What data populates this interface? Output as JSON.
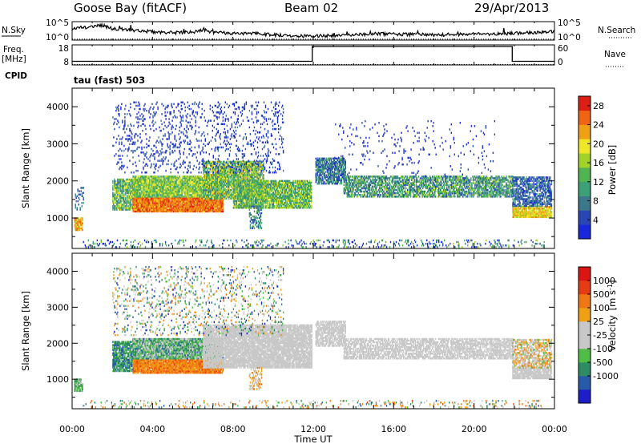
{
  "header": {
    "station": "Goose Bay (fitACF)",
    "beam": "Beam 02",
    "date": "29/Apr/2013"
  },
  "colors": {
    "frame": "#000000",
    "background": "#ffffff",
    "ground_scatter": "#c8c8c8"
  },
  "chart_data": [
    {
      "type": "line",
      "panel": "noise",
      "left_label": "N.Sky",
      "right_label": "N.Search",
      "left_ticks": [
        "10^5",
        "10^0"
      ],
      "right_ticks": [
        "10^5",
        "10^0"
      ],
      "x_range_hours": [
        0,
        24
      ],
      "series": [
        {
          "name": "N.Sky",
          "style": "solid",
          "x": [
            0,
            0.3,
            0.6,
            1,
            1.5,
            2,
            3,
            4,
            5,
            6,
            6.5,
            7,
            8,
            9,
            10,
            11,
            12,
            13,
            14,
            15,
            16,
            17,
            18,
            19,
            20,
            21,
            22,
            23,
            24
          ],
          "y_frac": [
            0.55,
            0.72,
            0.68,
            0.72,
            0.8,
            0.62,
            0.55,
            0.45,
            0.4,
            0.42,
            0.58,
            0.4,
            0.38,
            0.36,
            0.28,
            0.25,
            0.22,
            0.24,
            0.3,
            0.34,
            0.33,
            0.3,
            0.28,
            0.3,
            0.32,
            0.34,
            0.36,
            0.4,
            0.45
          ]
        },
        {
          "name": "N.Search",
          "style": "dotted",
          "x": [
            0,
            24
          ],
          "y_frac": [
            0.05,
            0.05
          ]
        }
      ]
    },
    {
      "type": "line",
      "panel": "frequency",
      "left_label": "Freq.",
      "left_unit": "[MHz]",
      "right_label": "Nave",
      "left_ticks": [
        "18",
        "8"
      ],
      "right_ticks": [
        "60",
        "0"
      ],
      "x_range_hours": [
        0,
        24
      ],
      "series": [
        {
          "name": "Freq.",
          "style": "solid",
          "x": [
            0,
            11.95,
            11.95,
            21.9,
            21.9,
            24
          ],
          "y": [
            9.8,
            9.8,
            17.2,
            17.2,
            9.8,
            9.8
          ],
          "ylim": [
            8,
            18
          ]
        },
        {
          "name": "Nave",
          "style": "dotted",
          "x": [
            0,
            24
          ],
          "y": [
            1.5,
            1.5
          ],
          "ylim": [
            0,
            60
          ]
        }
      ]
    },
    {
      "type": "heatmap",
      "panel": "power",
      "cpid_label": "CPID",
      "cpid_text": "tau (fast) 503",
      "ylabel": "Slant Range [km]",
      "yticks": [
        "1000",
        "2000",
        "3000",
        "4000"
      ],
      "ylim": [
        180,
        4500
      ],
      "x_range_hours": [
        0,
        24
      ],
      "colorbar": {
        "label": "Power [dB]",
        "ticks": [
          "4",
          "8",
          "12",
          "16",
          "20",
          "24",
          "28"
        ],
        "range": [
          0,
          30
        ],
        "colors": [
          "#1a28dc",
          "#2846b4",
          "#3c788c",
          "#3ca078",
          "#50b450",
          "#a0d228",
          "#f0e628",
          "#f0a014",
          "#f06414",
          "#dc1e14"
        ]
      },
      "regions": [
        {
          "t0": 0.1,
          "t1": 0.5,
          "r0": 650,
          "r1": 1000,
          "level": 0.72,
          "spread": 0.15,
          "density": 0.8
        },
        {
          "t0": 0.1,
          "t1": 0.55,
          "r0": 1200,
          "r1": 1800,
          "level": 0.2,
          "spread": 0.15,
          "density": 0.25
        },
        {
          "t0": 2.0,
          "t1": 3.4,
          "r0": 1200,
          "r1": 2050,
          "level": 0.45,
          "spread": 0.25,
          "density": 0.75
        },
        {
          "t0": 3.0,
          "t1": 7.5,
          "r0": 1150,
          "r1": 1550,
          "level": 0.82,
          "spread": 0.14,
          "density": 0.95
        },
        {
          "t0": 3.0,
          "t1": 7.5,
          "r0": 1550,
          "r1": 2100,
          "level": 0.5,
          "spread": 0.2,
          "density": 0.88
        },
        {
          "t0": 6.5,
          "t1": 9.5,
          "r0": 1500,
          "r1": 2500,
          "level": 0.48,
          "spread": 0.25,
          "density": 0.8
        },
        {
          "t0": 8.0,
          "t1": 11.9,
          "r0": 1250,
          "r1": 2000,
          "level": 0.45,
          "spread": 0.2,
          "density": 0.85
        },
        {
          "t0": 8.8,
          "t1": 9.4,
          "r0": 700,
          "r1": 1300,
          "level": 0.3,
          "spread": 0.15,
          "density": 0.4
        },
        {
          "t0": 2.0,
          "t1": 10.5,
          "r0": 2200,
          "r1": 4100,
          "level": 0.12,
          "spread": 0.1,
          "density": 0.12
        },
        {
          "t0": 12.1,
          "t1": 13.6,
          "r0": 1900,
          "r1": 2600,
          "level": 0.25,
          "spread": 0.2,
          "density": 0.7
        },
        {
          "t0": 13.5,
          "t1": 21.9,
          "r0": 1550,
          "r1": 2100,
          "level": 0.35,
          "spread": 0.2,
          "density": 0.65
        },
        {
          "t0": 21.9,
          "t1": 23.85,
          "r0": 1000,
          "r1": 1300,
          "level": 0.68,
          "spread": 0.14,
          "density": 0.9
        },
        {
          "t0": 21.9,
          "t1": 23.85,
          "r0": 1300,
          "r1": 2100,
          "level": 0.2,
          "spread": 0.15,
          "density": 0.6
        },
        {
          "t0": 0.5,
          "t1": 23.5,
          "r0": 190,
          "r1": 400,
          "level": 0.25,
          "spread": 0.3,
          "density": 0.15
        },
        {
          "t0": 13.0,
          "t1": 21.0,
          "r0": 2100,
          "r1": 3600,
          "level": 0.1,
          "spread": 0.1,
          "density": 0.03
        }
      ]
    },
    {
      "type": "heatmap",
      "panel": "velocity",
      "ylabel": "Slant Range [km]",
      "yticks": [
        "1000",
        "2000",
        "3000",
        "4000"
      ],
      "ylim": [
        180,
        4500
      ],
      "x_range_hours": [
        0,
        24
      ],
      "xticks": [
        "00:00",
        "04:00",
        "08:00",
        "12:00",
        "16:00",
        "20:00",
        "00:00"
      ],
      "xlabel": "Time UT",
      "colorbar": {
        "label": "Velocity",
        "unit_text": "[m s",
        "unit_exp": "-1",
        "ticks": [
          "1000",
          "500",
          "100",
          "25",
          "-25",
          "-100",
          "-500",
          "-1000"
        ],
        "colors": [
          "#1e1ec8",
          "#285aaa",
          "#2d8c64",
          "#50be46",
          "#c8c8c8",
          "#c8c8c8",
          "#f0a014",
          "#f07814",
          "#e63c14",
          "#dc1414"
        ]
      },
      "regions": [
        {
          "t0": 0.1,
          "t1": 0.5,
          "r0": 650,
          "r1": 1000,
          "level": 0.35,
          "spread": 0.1,
          "density": 0.8
        },
        {
          "t0": 2.0,
          "t1": 3.4,
          "r0": 1200,
          "r1": 2050,
          "level": 0.25,
          "spread": 0.12,
          "density": 0.75
        },
        {
          "t0": 3.0,
          "t1": 7.5,
          "r0": 1150,
          "r1": 1550,
          "level": 0.72,
          "spread": 0.12,
          "density": 0.95
        },
        {
          "t0": 3.0,
          "t1": 7.5,
          "r0": 1550,
          "r1": 2100,
          "level": 0.35,
          "spread": 0.18,
          "density": 0.88
        },
        {
          "t0": 6.5,
          "t1": 11.9,
          "r0": 1300,
          "r1": 2500,
          "level": 0.5,
          "spread": 0.04,
          "density": 0.85
        },
        {
          "t0": 8.8,
          "t1": 9.4,
          "r0": 700,
          "r1": 1300,
          "level": 0.6,
          "spread": 0.15,
          "density": 0.4
        },
        {
          "t0": 2.0,
          "t1": 10.5,
          "r0": 2200,
          "r1": 4100,
          "level": 0.4,
          "spread": 0.35,
          "density": 0.12
        },
        {
          "t0": 12.1,
          "t1": 13.6,
          "r0": 1900,
          "r1": 2600,
          "level": 0.5,
          "spread": 0.04,
          "density": 0.7
        },
        {
          "t0": 13.5,
          "t1": 21.9,
          "r0": 1550,
          "r1": 2100,
          "level": 0.5,
          "spread": 0.04,
          "density": 0.65
        },
        {
          "t0": 21.9,
          "t1": 23.85,
          "r0": 1000,
          "r1": 1300,
          "level": 0.5,
          "spread": 0.04,
          "density": 0.9
        },
        {
          "t0": 21.9,
          "t1": 23.85,
          "r0": 1300,
          "r1": 2100,
          "level": 0.55,
          "spread": 0.2,
          "density": 0.6
        },
        {
          "t0": 0.5,
          "t1": 23.5,
          "r0": 190,
          "r1": 400,
          "level": 0.5,
          "spread": 0.35,
          "density": 0.12
        }
      ]
    }
  ]
}
